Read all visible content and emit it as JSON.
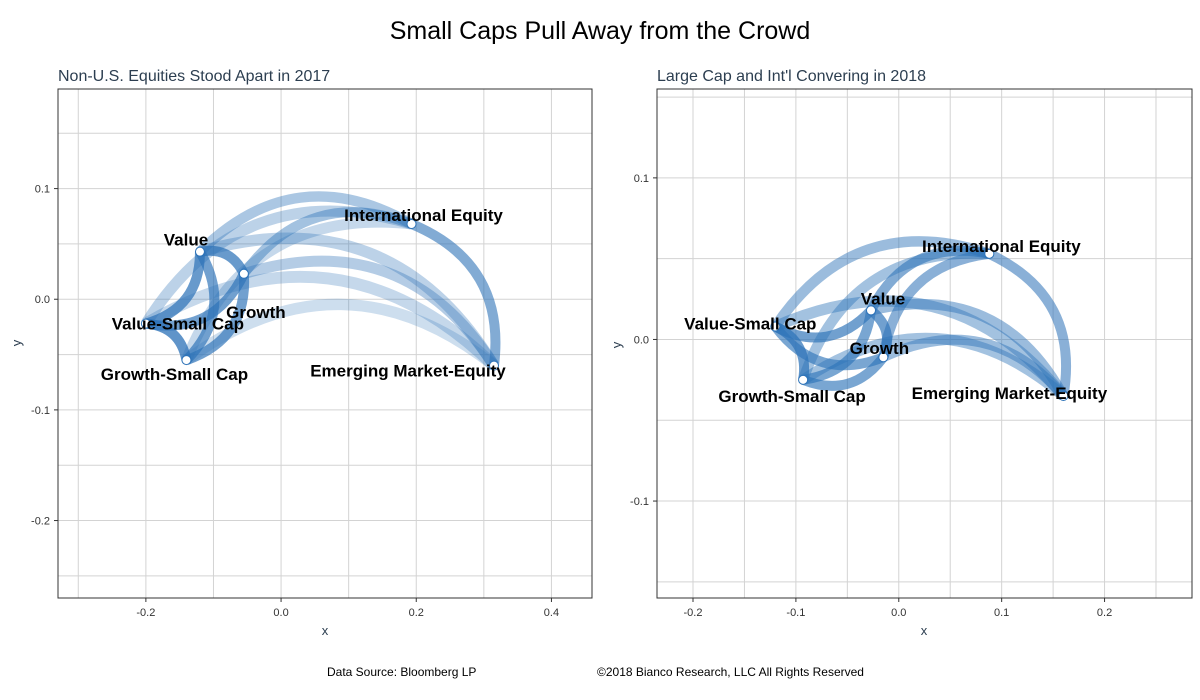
{
  "title": "Small Caps Pull Away from the Crowd",
  "footer": {
    "source": "Data Source: Bloomberg LP",
    "copyright": "©2018 Bianco Research, LLC All Rights Reserved"
  },
  "colors": {
    "edge": "#2e73b8",
    "node": "#ffffff",
    "grid": "#d3d3d3",
    "frame": "#333333"
  },
  "chart_data": [
    {
      "type": "network",
      "title": "Non-U.S. Equities Stood Apart in 2017",
      "xlabel": "x",
      "ylabel": "y",
      "xlim": [
        -0.33,
        0.46
      ],
      "ylim": [
        -0.27,
        0.19
      ],
      "xticks": [
        -0.2,
        0.0,
        0.2,
        0.4
      ],
      "xtick_labels": [
        "-0.2",
        "0.0",
        "0.2",
        "0.4"
      ],
      "yticks": [
        -0.2,
        -0.1,
        0.0,
        0.1
      ],
      "ytick_labels": [
        "-0.2",
        "-0.1",
        "0.0",
        "0.1"
      ],
      "nodes": [
        {
          "name": "Value",
          "x": -0.12,
          "y": 0.043
        },
        {
          "name": "Growth",
          "x": -0.055,
          "y": 0.023
        },
        {
          "name": "International Equity",
          "x": 0.193,
          "y": 0.068
        },
        {
          "name": "Value-Small Cap",
          "x": -0.2,
          "y": -0.022
        },
        {
          "name": "Growth-Small Cap",
          "x": -0.14,
          "y": -0.055
        },
        {
          "name": "Emerging Market-Equity",
          "x": 0.315,
          "y": -0.06
        }
      ],
      "edges": [
        {
          "source": "Value",
          "target": "Growth",
          "opacity": 0.9
        },
        {
          "source": "Value",
          "target": "Value-Small Cap",
          "opacity": 0.9
        },
        {
          "source": "Value",
          "target": "Growth-Small Cap",
          "opacity": 0.85
        },
        {
          "source": "Value",
          "target": "International Equity",
          "opacity": 0.5
        },
        {
          "source": "Value",
          "target": "Emerging Market-Equity",
          "opacity": 0.4
        },
        {
          "source": "Growth",
          "target": "Value-Small Cap",
          "opacity": 0.85
        },
        {
          "source": "Growth",
          "target": "Growth-Small Cap",
          "opacity": 0.85
        },
        {
          "source": "Growth",
          "target": "International Equity",
          "opacity": 0.55
        },
        {
          "source": "Growth",
          "target": "Emerging Market-Equity",
          "opacity": 0.45
        },
        {
          "source": "Value-Small Cap",
          "target": "Growth-Small Cap",
          "opacity": 0.95
        },
        {
          "source": "Value-Small Cap",
          "target": "International Equity",
          "opacity": 0.4
        },
        {
          "source": "Value-Small Cap",
          "target": "Emerging Market-Equity",
          "opacity": 0.35
        },
        {
          "source": "Growth-Small Cap",
          "target": "International Equity",
          "opacity": 0.35
        },
        {
          "source": "Growth-Small Cap",
          "target": "Emerging Market-Equity",
          "opacity": 0.3
        },
        {
          "source": "International Equity",
          "target": "Emerging Market-Equity",
          "opacity": 0.75
        }
      ]
    },
    {
      "type": "network",
      "title": "Large Cap and Int'l Convering in 2018",
      "xlabel": "x",
      "ylabel": "y",
      "xlim": [
        -0.235,
        0.285
      ],
      "ylim": [
        -0.16,
        0.155
      ],
      "xticks": [
        -0.2,
        -0.1,
        0.0,
        0.1,
        0.2
      ],
      "xtick_labels": [
        "-0.2",
        "-0.1",
        "0.0",
        "0.1",
        "0.2"
      ],
      "yticks": [
        -0.1,
        0.0,
        0.1
      ],
      "ytick_labels": [
        "-0.1",
        "0.0",
        "0.1"
      ],
      "nodes": [
        {
          "name": "Value",
          "x": -0.027,
          "y": 0.018
        },
        {
          "name": "Growth",
          "x": -0.015,
          "y": -0.011
        },
        {
          "name": "International Equity",
          "x": 0.088,
          "y": 0.053
        },
        {
          "name": "Value-Small Cap",
          "x": -0.12,
          "y": 0.008
        },
        {
          "name": "Growth-Small Cap",
          "x": -0.093,
          "y": -0.025
        },
        {
          "name": "Emerging Market-Equity",
          "x": 0.16,
          "y": -0.035
        }
      ],
      "edges": [
        {
          "source": "Value",
          "target": "Growth",
          "opacity": 0.85
        },
        {
          "source": "Value",
          "target": "Value-Small Cap",
          "opacity": 0.85
        },
        {
          "source": "Value",
          "target": "Growth-Small Cap",
          "opacity": 0.8
        },
        {
          "source": "Value",
          "target": "International Equity",
          "opacity": 0.75
        },
        {
          "source": "Value",
          "target": "Emerging Market-Equity",
          "opacity": 0.6
        },
        {
          "source": "Growth",
          "target": "Value-Small Cap",
          "opacity": 0.8
        },
        {
          "source": "Growth",
          "target": "Growth-Small Cap",
          "opacity": 0.8
        },
        {
          "source": "Growth",
          "target": "International Equity",
          "opacity": 0.7
        },
        {
          "source": "Growth",
          "target": "Emerging Market-Equity",
          "opacity": 0.6
        },
        {
          "source": "Value-Small Cap",
          "target": "Growth-Small Cap",
          "opacity": 0.9
        },
        {
          "source": "Value-Small Cap",
          "target": "International Equity",
          "opacity": 0.6
        },
        {
          "source": "Value-Small Cap",
          "target": "Emerging Market-Equity",
          "opacity": 0.55
        },
        {
          "source": "Growth-Small Cap",
          "target": "International Equity",
          "opacity": 0.55
        },
        {
          "source": "Growth-Small Cap",
          "target": "Emerging Market-Equity",
          "opacity": 0.55
        },
        {
          "source": "International Equity",
          "target": "Emerging Market-Equity",
          "opacity": 0.7
        }
      ]
    }
  ]
}
